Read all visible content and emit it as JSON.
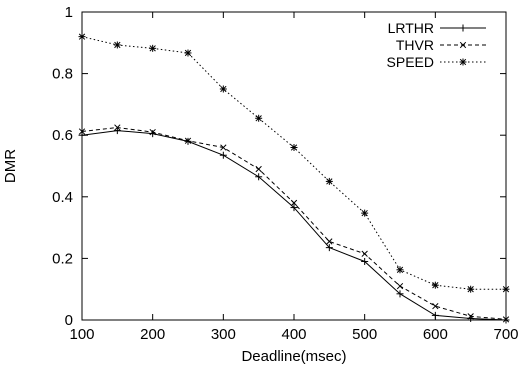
{
  "chart_data": {
    "type": "line",
    "xlabel": "Deadline(msec)",
    "ylabel": "DMR",
    "xlim": [
      100,
      700
    ],
    "ylim": [
      0,
      1
    ],
    "xticks": [
      100,
      200,
      300,
      400,
      500,
      600,
      700
    ],
    "yticks": [
      0,
      0.2,
      0.4,
      0.6,
      0.8,
      1
    ],
    "ytick_labels": [
      "0",
      "0.2",
      "0.4",
      "0.6",
      "0.8",
      "1"
    ],
    "x": [
      100,
      150,
      200,
      250,
      300,
      350,
      400,
      450,
      500,
      550,
      600,
      650,
      700
    ],
    "legend_position": "top-right",
    "grid": false,
    "series": [
      {
        "name": "LRTHR",
        "line_style": "solid",
        "marker": "plus",
        "values": [
          0.6,
          0.615,
          0.605,
          0.58,
          0.535,
          0.465,
          0.365,
          0.235,
          0.19,
          0.085,
          0.015,
          0.005,
          0.0
        ]
      },
      {
        "name": "THVR",
        "line_style": "dashed",
        "marker": "cross",
        "values": [
          0.612,
          0.625,
          0.61,
          0.582,
          0.56,
          0.49,
          0.38,
          0.255,
          0.215,
          0.11,
          0.045,
          0.012,
          0.002
        ]
      },
      {
        "name": "SPEED",
        "line_style": "dotted",
        "marker": "star",
        "values": [
          0.92,
          0.893,
          0.882,
          0.867,
          0.75,
          0.655,
          0.56,
          0.45,
          0.347,
          0.163,
          0.113,
          0.1,
          0.1
        ]
      }
    ]
  }
}
